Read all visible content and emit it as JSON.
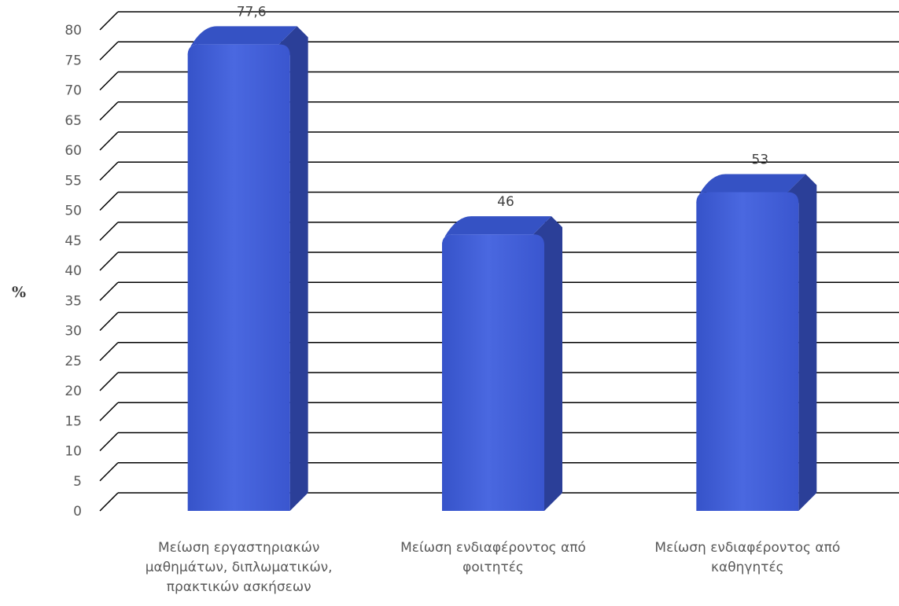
{
  "chart_data": {
    "type": "bar",
    "categories": [
      "Μείωση εργαστηριακών\nμαθημάτων, διπλωματικών,\nπρακτικών ασκήσεων",
      "Μείωση ενδιαφέροντος από\nφοιτητές",
      "Μείωση ενδιαφέροντος από\nκαθηγητές"
    ],
    "values": [
      77.6,
      46,
      53
    ],
    "data_labels": [
      "77,6",
      "46",
      "53"
    ],
    "title": "",
    "xlabel": "",
    "ylabel": "%",
    "ylim": [
      0,
      80
    ],
    "yticks": [
      0,
      5,
      10,
      15,
      20,
      25,
      30,
      35,
      40,
      45,
      50,
      55,
      60,
      65,
      70,
      75,
      80
    ],
    "grid": true,
    "legend": "none",
    "style": "3d-column",
    "colors": {
      "bar_front": "#4060D8",
      "bar_side": "#2B3F98",
      "bar_top": "#3552C4",
      "grid": "#000000",
      "tick_text": "#595959"
    }
  }
}
